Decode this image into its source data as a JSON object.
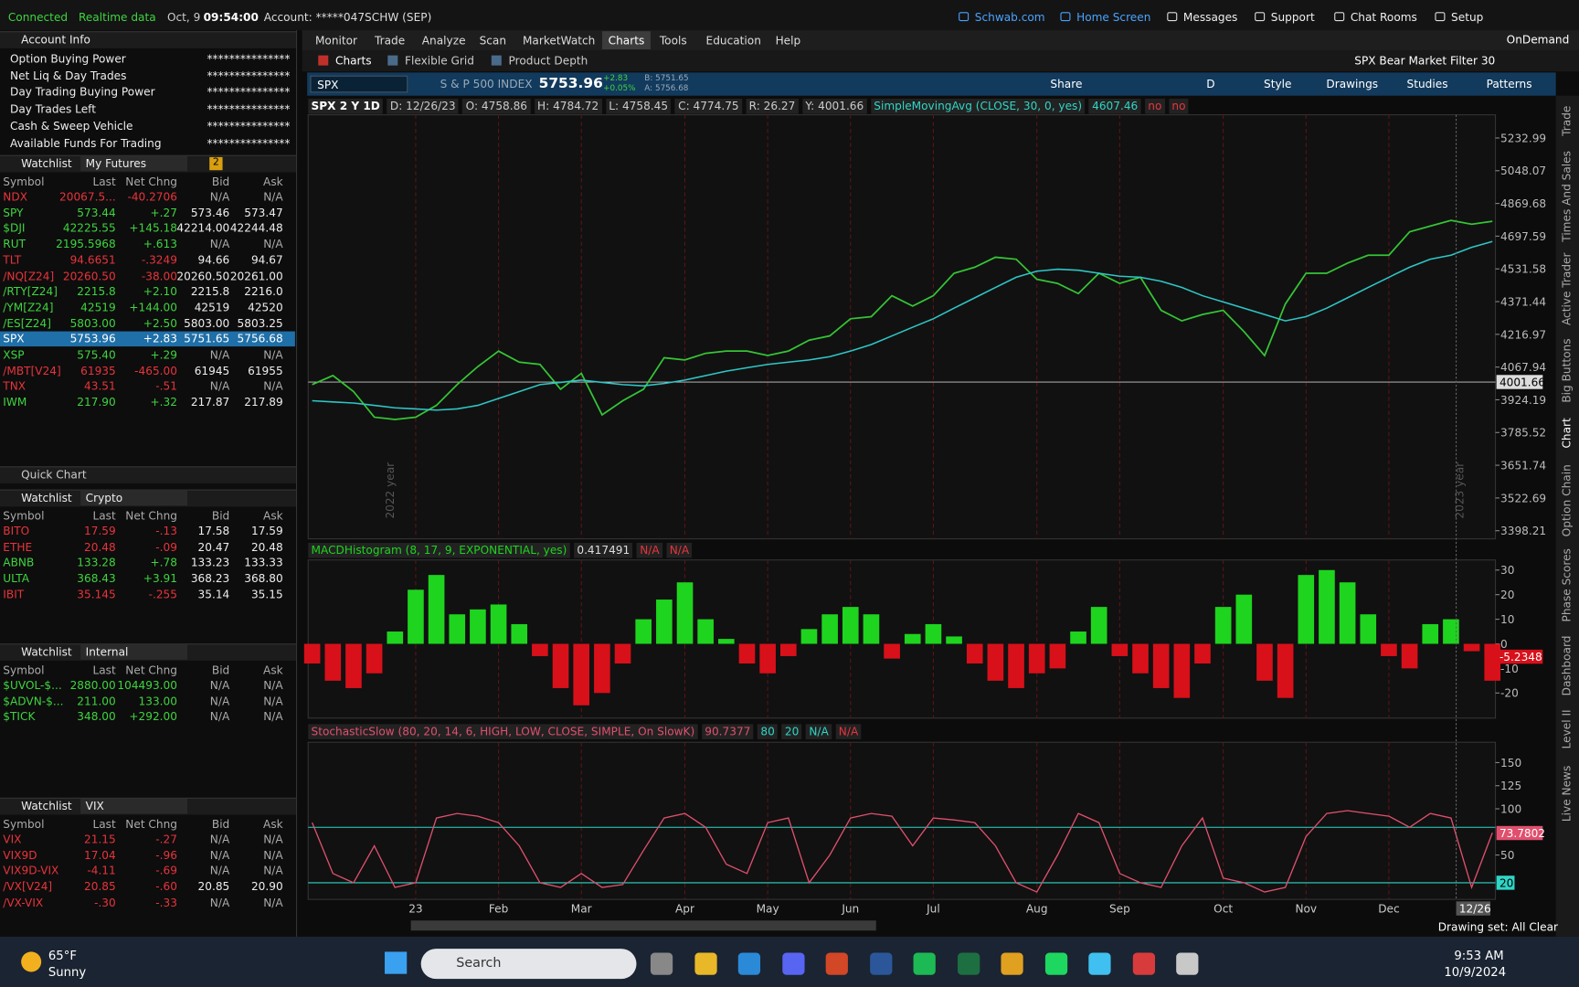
{
  "status": {
    "connected": "Connected",
    "realtime": "Realtime data",
    "date": "Oct, 9",
    "time": "09:54:00",
    "account": "Account: *****047SCHW (SEP)"
  },
  "top_links": [
    "Schwab.com",
    "Home Screen",
    "Messages",
    "Support",
    "Chat Rooms",
    "Setup"
  ],
  "menu": {
    "items": [
      "Monitor",
      "Trade",
      "Analyze",
      "Scan",
      "MarketWatch",
      "Charts",
      "Tools",
      "Education",
      "Help"
    ],
    "active": 5,
    "ondemand": "OnDemand"
  },
  "subtabs": [
    "Charts",
    "Flexible Grid",
    "Product Depth"
  ],
  "filter": "SPX Bear Market Filter 30",
  "account_info": {
    "title": "Account Info",
    "rows": [
      [
        "Option Buying Power",
        "***************"
      ],
      [
        "Net Liq & Day Trades",
        "***************"
      ],
      [
        "Day Trading Buying Power",
        "***************"
      ],
      [
        "Day Trades Left",
        "***************"
      ],
      [
        "Cash & Sweep Vehicle",
        "***************"
      ],
      [
        "Available Funds For Trading",
        "***************"
      ]
    ]
  },
  "quick_chart": "Quick Chart",
  "watchlists": [
    {
      "label": "Watchlist",
      "name": "My Futures",
      "badge": "2",
      "columns": [
        "Symbol",
        "Last",
        "Net Chng",
        "Bid",
        "Ask"
      ],
      "selected": 9,
      "rows": [
        [
          "NDX",
          "20067.5...",
          "-40.2706",
          "N/A",
          "N/A"
        ],
        [
          "SPY",
          "573.44",
          "+.27",
          "573.46",
          "573.47"
        ],
        [
          "$DJI",
          "42225.55",
          "+145.18",
          "42214.00",
          "42244.48"
        ],
        [
          "RUT",
          "2195.5968",
          "+.613",
          "N/A",
          "N/A"
        ],
        [
          "TLT",
          "94.6651",
          "-.3249",
          "94.66",
          "94.67"
        ],
        [
          "/NQ[Z24]",
          "20260.50",
          "-38.00",
          "20260.50",
          "20261.00"
        ],
        [
          "/RTY[Z24]",
          "2215.8",
          "+2.10",
          "2215.8",
          "2216.0"
        ],
        [
          "/YM[Z24]",
          "42519",
          "+144.00",
          "42519",
          "42520"
        ],
        [
          "/ES[Z24]",
          "5803.00",
          "+2.50",
          "5803.00",
          "5803.25"
        ],
        [
          "SPX",
          "5753.96",
          "+2.83",
          "5751.65",
          "5756.68"
        ],
        [
          "XSP",
          "575.40",
          "+.29",
          "N/A",
          "N/A"
        ],
        [
          "/MBT[V24]",
          "61935",
          "-465.00",
          "61945",
          "61955"
        ],
        [
          "TNX",
          "43.51",
          "-.51",
          "N/A",
          "N/A"
        ],
        [
          "IWM",
          "217.90",
          "+.32",
          "217.87",
          "217.89"
        ]
      ]
    },
    {
      "label": "Watchlist",
      "name": "Crypto",
      "columns": [
        "Symbol",
        "Last",
        "Net Chng",
        "Bid",
        "Ask"
      ],
      "rows": [
        [
          "BITO",
          "17.59",
          "-.13",
          "17.58",
          "17.59"
        ],
        [
          "ETHE",
          "20.48",
          "-.09",
          "20.47",
          "20.48"
        ],
        [
          "ABNB",
          "133.28",
          "+.78",
          "133.23",
          "133.33"
        ],
        [
          "ULTA",
          "368.43",
          "+3.91",
          "368.23",
          "368.80"
        ],
        [
          "IBIT",
          "35.145",
          "-.255",
          "35.14",
          "35.15"
        ]
      ]
    },
    {
      "label": "Watchlist",
      "name": "Internal",
      "columns": [
        "Symbol",
        "Last",
        "Net Chng",
        "Bid",
        "Ask"
      ],
      "rows": [
        [
          "$UVOL-$...",
          "2880.00",
          "104493.00",
          "N/A",
          "N/A"
        ],
        [
          "$ADVN-$...",
          "211.00",
          "133.00",
          "N/A",
          "N/A"
        ],
        [
          "$TICK",
          "348.00",
          "+292.00",
          "N/A",
          "N/A"
        ]
      ]
    },
    {
      "label": "Watchlist",
      "name": "VIX",
      "columns": [
        "Symbol",
        "Last",
        "Net Chng",
        "Bid",
        "Ask"
      ],
      "rows": [
        [
          "VIX",
          "21.15",
          "-.27",
          "N/A",
          "N/A"
        ],
        [
          "VIX9D",
          "17.04",
          "-.96",
          "N/A",
          "N/A"
        ],
        [
          "VIX9D-VIX",
          "-4.11",
          "-.69",
          "N/A",
          "N/A"
        ],
        [
          "/VX[V24]",
          "20.85",
          "-.60",
          "20.85",
          "20.90"
        ],
        [
          "/VX-VIX",
          "-.30",
          "-.33",
          "N/A",
          "N/A"
        ]
      ]
    }
  ],
  "toolbar": {
    "symbol": "SPX",
    "description": "S & P 500 INDEX",
    "last": "5753.96",
    "change": "+2.83",
    "change_pct": "+0.05%",
    "bid": "B: 5751.65",
    "ask": "A: 5756.68",
    "buttons": [
      "Share",
      "D",
      "Style",
      "Drawings",
      "Studies",
      "Patterns"
    ]
  },
  "readout": {
    "period": "SPX 2 Y 1D",
    "items": [
      "D: 12/26/23",
      "O: 4758.86",
      "H: 4784.72",
      "L: 4758.45",
      "C: 4774.75",
      "R: 26.27",
      "Y: 4001.66"
    ],
    "flags": [
      "no",
      "no"
    ]
  },
  "chart_data": [
    {
      "type": "line",
      "log_scale": true,
      "categories": [
        null,
        null,
        null,
        null,
        null,
        "23",
        null,
        null,
        null,
        "Feb",
        null,
        null,
        null,
        "Mar",
        null,
        null,
        null,
        null,
        "Apr",
        null,
        null,
        null,
        "May",
        null,
        null,
        null,
        "Jun",
        null,
        null,
        null,
        "Jul",
        null,
        null,
        null,
        null,
        "Aug",
        null,
        null,
        null,
        "Sep",
        null,
        null,
        null,
        null,
        "Oct",
        null,
        null,
        null,
        "Nov",
        null,
        null,
        null,
        "Dec",
        null,
        null,
        null,
        null,
        null
      ],
      "series": [
        {
          "name": "SPX",
          "color": "#35c435",
          "values": [
            3990,
            4030,
            3960,
            3850,
            3840,
            3850,
            3900,
            3990,
            4070,
            4140,
            4090,
            4080,
            3970,
            4040,
            3860,
            3920,
            3970,
            4110,
            4100,
            4130,
            4140,
            4140,
            4120,
            4140,
            4190,
            4210,
            4290,
            4300,
            4400,
            4350,
            4400,
            4510,
            4540,
            4590,
            4580,
            4480,
            4460,
            4410,
            4510,
            4460,
            4490,
            4330,
            4280,
            4310,
            4330,
            4230,
            4120,
            4360,
            4510,
            4510,
            4560,
            4600,
            4600,
            4720,
            4750,
            4780,
            4760,
            4775
          ]
        },
        {
          "name": "SimpleMovingAvg (CLOSE, 30, 0, yes)",
          "color": "#2fc6c6",
          "values": [
            3920,
            3915,
            3910,
            3900,
            3890,
            3885,
            3880,
            3885,
            3900,
            3930,
            3960,
            3990,
            4000,
            4010,
            4000,
            3990,
            3985,
            3995,
            4010,
            4030,
            4050,
            4065,
            4080,
            4090,
            4100,
            4115,
            4140,
            4170,
            4210,
            4250,
            4290,
            4340,
            4390,
            4440,
            4490,
            4520,
            4530,
            4525,
            4510,
            4495,
            4490,
            4470,
            4440,
            4400,
            4370,
            4340,
            4310,
            4280,
            4300,
            4340,
            4390,
            4440,
            4490,
            4540,
            4580,
            4600,
            4640,
            4670
          ]
        }
      ],
      "sma_value": 4607.46,
      "hline": 4001.66,
      "annotations": [
        "2022 year",
        "2023 year"
      ],
      "ylim": [
        3368,
        5368
      ],
      "yticks": [
        5232.99,
        5048.07,
        4869.68,
        4697.59,
        4531.58,
        4371.44,
        4216.97,
        4067.94,
        3924.19,
        3785.52,
        3651.74,
        3522.69,
        3398.21
      ]
    },
    {
      "type": "histogram-study",
      "name": "MACDHistogram (8, 17, 9, EXPONENTIAL, yes)",
      "header_values": [
        0.417491,
        "N/A",
        "N/A"
      ],
      "up_color": "#1ed41e",
      "down_color": "#d8101a",
      "values": [
        -8,
        -15,
        -18,
        -12,
        5,
        22,
        28,
        12,
        14,
        16,
        8,
        -5,
        -18,
        -25,
        -20,
        -8,
        10,
        18,
        25,
        10,
        2,
        -8,
        -12,
        -5,
        6,
        12,
        15,
        12,
        -6,
        4,
        8,
        3,
        -8,
        -15,
        -18,
        -12,
        -10,
        5,
        15,
        -5,
        -12,
        -18,
        -22,
        -8,
        15,
        20,
        -15,
        -22,
        28,
        30,
        25,
        12,
        -5,
        -10,
        8,
        10,
        -3,
        -15
      ],
      "last_value": -5.2348,
      "ylim": [
        -30.2,
        34.1
      ],
      "yticks": [
        30,
        20,
        10,
        0,
        -10,
        -20
      ]
    },
    {
      "type": "oscillator",
      "name": "StochasticSlow (80, 20, 14, 6, HIGH, LOW, CLOSE, SIMPLE, On SlowK)",
      "header_value": 90.7377,
      "levels": [
        80,
        20
      ],
      "header_na": [
        "N/A",
        "N/A"
      ],
      "color": "#e0506e",
      "level_color": "#2fd6c6",
      "values": [
        85,
        30,
        20,
        60,
        15,
        20,
        90,
        95,
        92,
        85,
        60,
        20,
        15,
        30,
        15,
        18,
        55,
        90,
        95,
        80,
        40,
        30,
        85,
        90,
        20,
        50,
        90,
        95,
        92,
        60,
        90,
        88,
        85,
        60,
        20,
        10,
        50,
        95,
        85,
        30,
        20,
        15,
        60,
        90,
        25,
        20,
        10,
        15,
        70,
        95,
        98,
        95,
        92,
        80,
        95,
        90,
        15,
        74
      ],
      "last_value": 73.7802,
      "ylim": [
        2,
        172
      ],
      "yticks": [
        150,
        125,
        100,
        50
      ]
    }
  ],
  "side_tabs": [
    "Trade",
    "Times And Sales",
    "Active Trader",
    "Big Buttons",
    "Chart",
    "Option Chain",
    "Phase Scores",
    "Dashboard",
    "Level II",
    "Live News"
  ],
  "footer": {
    "drawing_set": "Drawing set: All Clear",
    "cursor_date": "12/26"
  },
  "taskbar": {
    "temp": "65°F",
    "weather": "Sunny",
    "search": "Search",
    "time": "9:53 AM",
    "date": "10/9/2024"
  }
}
